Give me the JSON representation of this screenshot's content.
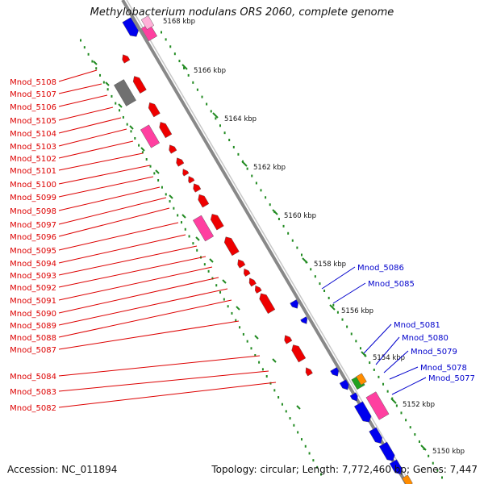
{
  "title": "Methylobacterium nodulans ORS 2060, complete genome",
  "accession": "Accession: NC_011894",
  "summary": "Topology: circular; Length: 7,772,460 bp; Genes: 7,447",
  "colors": {
    "reverse_label": "#dd0000",
    "forward_label": "#0000cc",
    "backbone": "#888888",
    "ruler": "#228b22"
  },
  "ticks": [
    "5166 kbp",
    "5164 kbp",
    "5162 kbp",
    "5160 kbp",
    "5158 kbp",
    "5156 kbp",
    "5154 kbp",
    "5152 kbp",
    "5150 kbp"
  ],
  "reverse_genes": [
    "Mnod_5108",
    "Mnod_5107",
    "Mnod_5106",
    "Mnod_5105",
    "Mnod_5104",
    "Mnod_5103",
    "Mnod_5102",
    "Mnod_5101",
    "Mnod_5100",
    "Mnod_5099",
    "Mnod_5098",
    "Mnod_5097",
    "Mnod_5096",
    "Mnod_5095",
    "Mnod_5094",
    "Mnod_5093",
    "Mnod_5092",
    "Mnod_5091",
    "Mnod_5090",
    "Mnod_5089",
    "Mnod_5088",
    "Mnod_5087",
    "Mnod_5084",
    "Mnod_5083",
    "Mnod_5082"
  ],
  "forward_genes": [
    "Mnod_5086",
    "Mnod_5085",
    "Mnod_5081",
    "Mnod_5080",
    "Mnod_5079",
    "Mnod_5078",
    "Mnod_5077"
  ],
  "partial_label": "5168 kbp"
}
